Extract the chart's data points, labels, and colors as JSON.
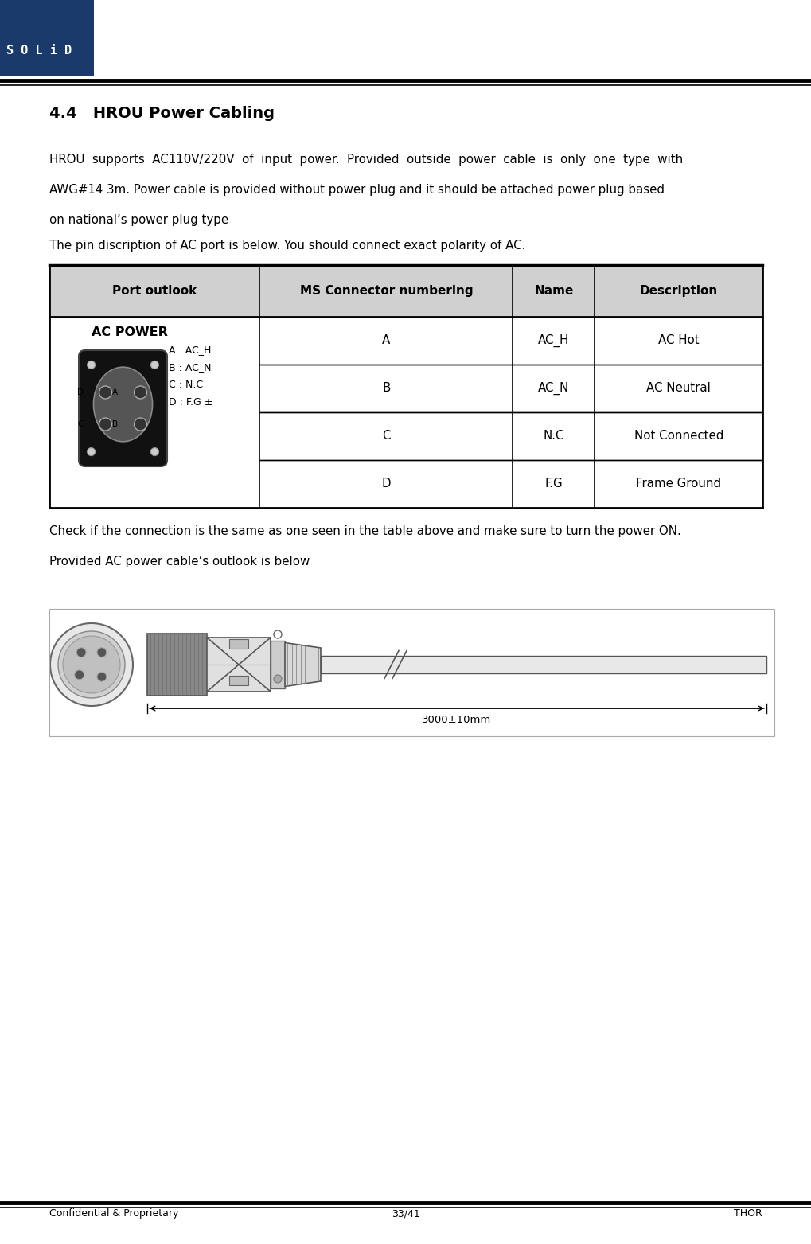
{
  "page_title": "4.4   HROU Power Cabling",
  "body_line1": "HROU  supports  AC110V/220V  of  input  power.  Provided  outside  power  cable  is  only  one  type  with",
  "body_line2": "AWG#14 3m. Power cable is provided without power plug and it should be attached power plug based",
  "body_line3": "on national’s power plug type",
  "body_text_2": "The pin discription of AC port is below. You should connect exact polarity of AC.",
  "table_headers": [
    "Port outlook",
    "MS Connector numbering",
    "Name",
    "Description"
  ],
  "table_rows": [
    [
      "A",
      "AC_H",
      "AC Hot"
    ],
    [
      "B",
      "AC_N",
      "AC Neutral"
    ],
    [
      "C",
      "N.C",
      "Not Connected"
    ],
    [
      "D",
      "F.G",
      "Frame Ground"
    ]
  ],
  "check_text": "Check if the connection is the same as one seen in the table above and make sure to turn the power ON.",
  "outlook_text": "Provided AC power cable’s outlook is below",
  "footer_left": "Confidential & Proprietary",
  "footer_center": "33/41",
  "footer_right": "THOR",
  "table_header_bg": "#d0d0d0",
  "table_row_bg": "#f5f5f5",
  "table_border": "#000000",
  "logo_bg": "#1a3a6b",
  "logo_text_color": "#ffffff",
  "dim_label": "3000±10mm"
}
